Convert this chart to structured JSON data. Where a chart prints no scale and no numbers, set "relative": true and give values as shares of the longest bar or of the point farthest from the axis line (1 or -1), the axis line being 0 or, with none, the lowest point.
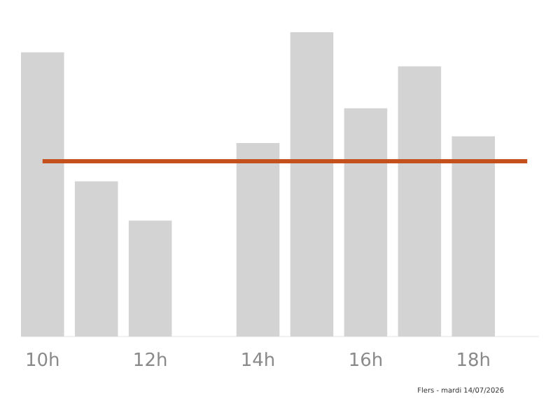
{
  "chart_data": {
    "type": "bar",
    "relative": true,
    "categories": [
      "10h",
      null,
      "12h",
      null,
      "14h",
      null,
      "16h",
      null,
      "18h",
      null
    ],
    "values": [
      0.934,
      0.51,
      0.381,
      null,
      0.636,
      1,
      0.75,
      0.888,
      0.658,
      null
    ],
    "color": "#d3d3d3",
    "ref_lines": [
      {
        "axis": "y",
        "value": 0.576,
        "color": "#c4501e"
      }
    ],
    "annotations": [
      "Flers - mardi 14/07/2026"
    ]
  }
}
